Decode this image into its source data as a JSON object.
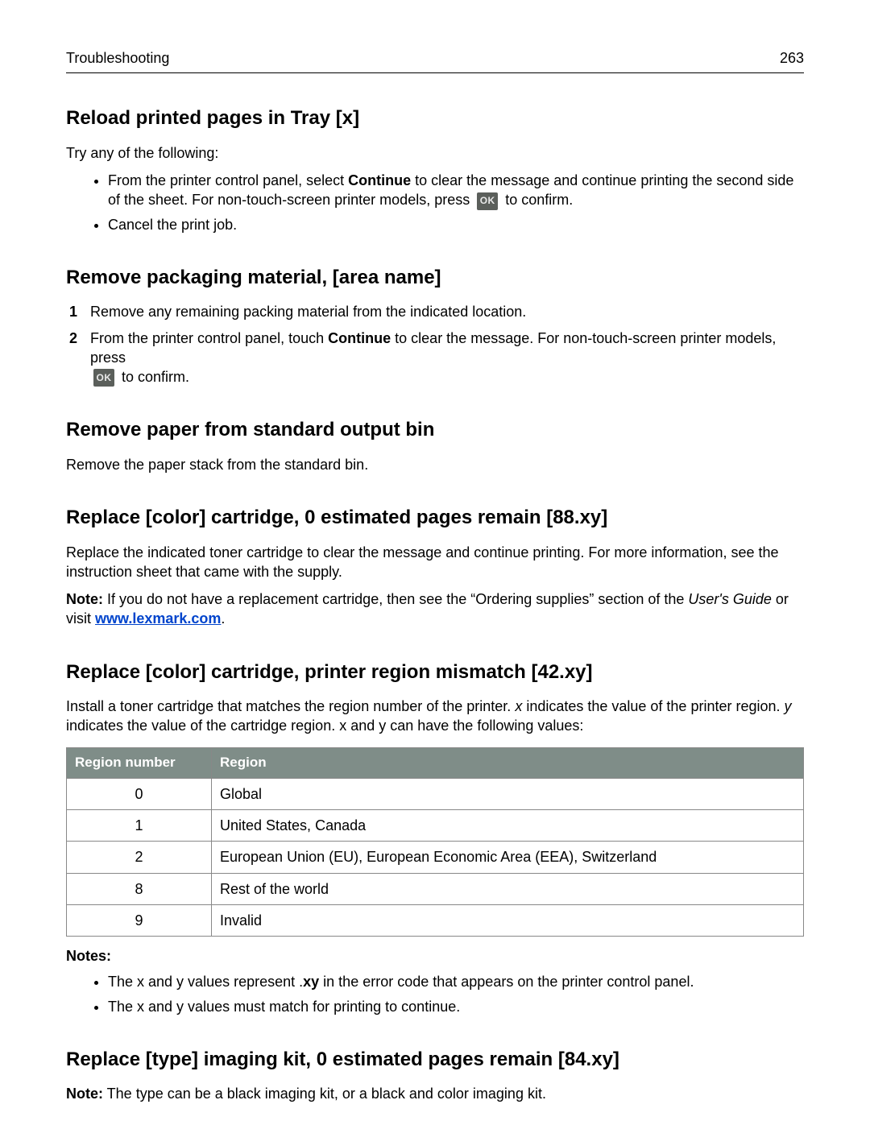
{
  "header": {
    "left": "Troubleshooting",
    "page_number": "263"
  },
  "sections": {
    "s1": {
      "title": "Reload printed pages in Tray [x]",
      "intro": "Try any of the following:",
      "bullet1_a": "From the printer control panel, select ",
      "bullet1_b": "Continue",
      "bullet1_c": " to clear the message and continue printing the second side of the sheet. For non‑touch‑screen printer models, press ",
      "bullet1_d": " to confirm.",
      "bullet2": "Cancel the print job."
    },
    "s2": {
      "title": "Remove packaging material, [area name]",
      "step1": "Remove any remaining packing material from the indicated location.",
      "step2_a": "From the printer control panel, touch ",
      "step2_b": "Continue",
      "step2_c": " to clear the message. For non‑touch‑screen printer models, press ",
      "step2_d": " to confirm."
    },
    "s3": {
      "title": "Remove paper from standard output bin",
      "body": "Remove the paper stack from the standard bin."
    },
    "s4": {
      "title": "Replace [color] cartridge, 0 estimated pages remain [88.xy]",
      "p1": "Replace the indicated toner cartridge to clear the message and continue printing. For more information, see the instruction sheet that came with the supply.",
      "note_a": "Note:",
      "note_b": " If you do not have a replacement cartridge, then see the “Ordering supplies” section of the ",
      "note_c": "User's Guide",
      "note_d": " or visit ",
      "link_text": "www.lexmark.com",
      "note_e": "."
    },
    "s5": {
      "title": "Replace [color] cartridge, printer region mismatch [42.xy]",
      "intro_a": "Install a toner cartridge that matches the region number of the printer. ",
      "intro_x": "x",
      "intro_b": " indicates the value of the printer region. ",
      "intro_y": "y",
      "intro_c": " indicates the value of the cartridge region. x and y can have the following values:",
      "table": {
        "col1": "Region number",
        "col2": "Region",
        "rows": [
          {
            "n": "0",
            "r": "Global"
          },
          {
            "n": "1",
            "r": "United States, Canada"
          },
          {
            "n": "2",
            "r": "European Union (EU), European Economic Area (EEA), Switzerland"
          },
          {
            "n": "8",
            "r": "Rest of the world"
          },
          {
            "n": "9",
            "r": "Invalid"
          }
        ]
      },
      "notes_label": "Notes:",
      "note1_a": "The x and y values represent .",
      "note1_b": "xy",
      "note1_c": " in the error code that appears on the printer control panel.",
      "note2": "The x and y values must match for printing to continue."
    },
    "s6": {
      "title": "Replace [type] imaging kit, 0 estimated pages remain [84.xy]",
      "note_a": "Note:",
      "note_b": " The type can be a black imaging kit, or a black and color imaging kit."
    }
  },
  "ok_label": "OK",
  "colors": {
    "table_header_bg": "#7f8d88",
    "table_header_fg": "#ffffff",
    "link": "#0044cc",
    "ok_bg": "#5b5f5b"
  }
}
